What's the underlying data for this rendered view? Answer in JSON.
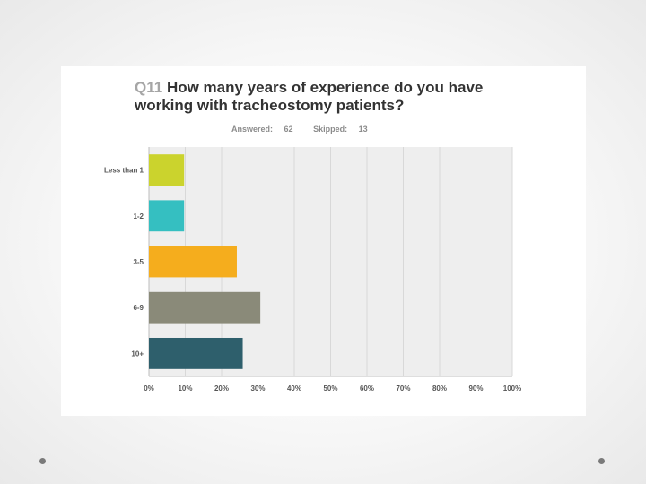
{
  "title": {
    "qnum": "Q11",
    "text": "How many years of experience do you have working with tracheostomy patients?"
  },
  "meta": {
    "answered_label": "Answered:",
    "answered": "62",
    "skipped_label": "Skipped:",
    "skipped": "13"
  },
  "chart_data": {
    "type": "bar",
    "orientation": "horizontal",
    "title": "Q11 How many years of experience do you have working with tracheostomy patients?",
    "categories": [
      "Less than 1",
      "1-2",
      "3-5",
      "6-9",
      "10+"
    ],
    "values": [
      9.68,
      9.68,
      24.19,
      30.65,
      25.81
    ],
    "colors": [
      "#cbd32d",
      "#35bfc1",
      "#f5ad1d",
      "#8a8a79",
      "#2e5f6c"
    ],
    "xlim": [
      0,
      100
    ],
    "xticks": [
      "0%",
      "10%",
      "20%",
      "30%",
      "40%",
      "50%",
      "60%",
      "70%",
      "80%",
      "90%",
      "100%"
    ],
    "grid": true,
    "xlabel": "",
    "ylabel": ""
  }
}
